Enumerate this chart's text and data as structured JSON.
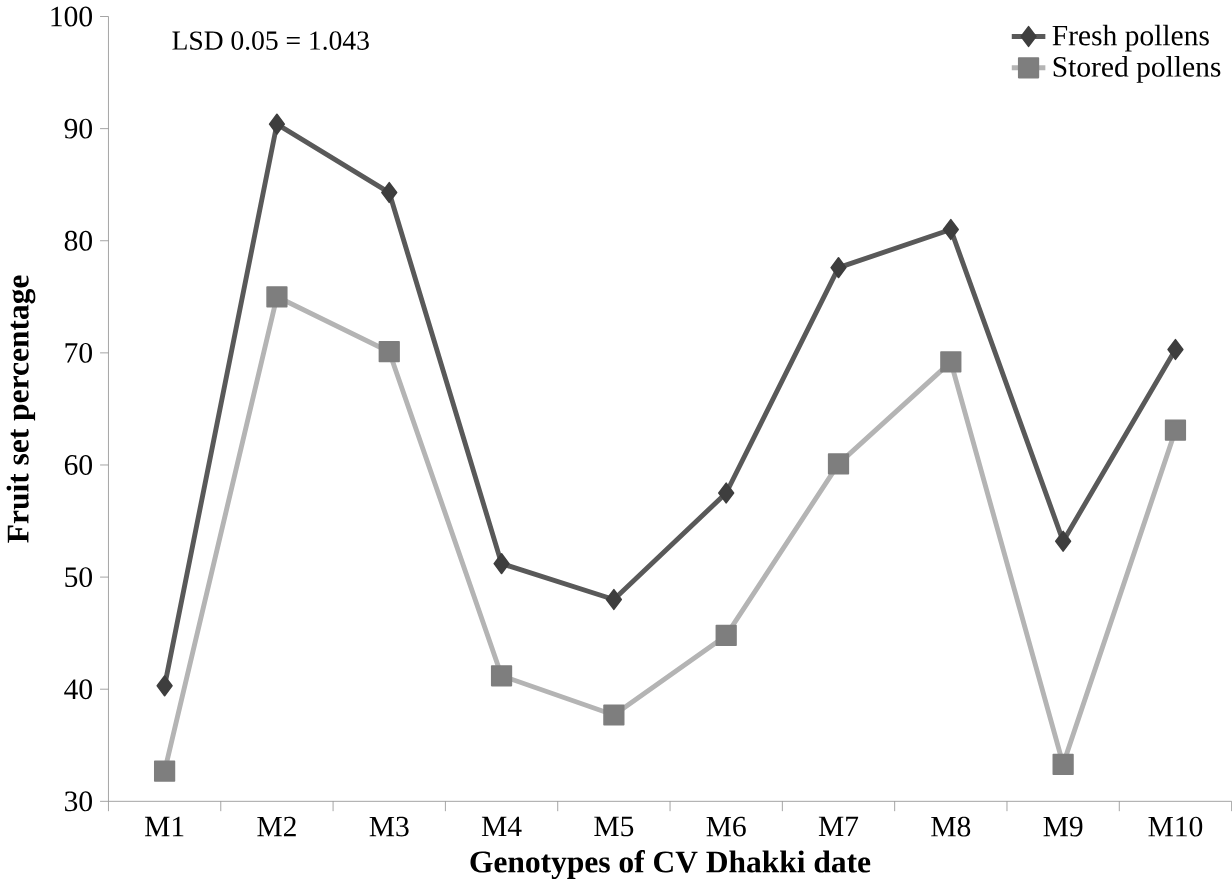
{
  "chart_data": {
    "type": "line",
    "xlabel": "Genotypes of CV Dhakki date",
    "ylabel": "Fruit set percentage",
    "categories": [
      "M1",
      "M2",
      "M3",
      "M4",
      "M5",
      "M6",
      "M7",
      "M8",
      "M9",
      "M10"
    ],
    "series": [
      {
        "name": "Fresh pollens",
        "color": "#595959",
        "marker": "diamond",
        "values": [
          40.3,
          90.4,
          84.3,
          51.2,
          48.0,
          57.5,
          77.6,
          81.0,
          53.2,
          70.3
        ]
      },
      {
        "name": "Stored pollens",
        "color": "#b4b4b4",
        "marker": "square",
        "values": [
          32.7,
          75.0,
          70.1,
          41.2,
          37.7,
          44.8,
          60.1,
          69.2,
          33.3,
          63.1
        ]
      }
    ],
    "ylim": [
      30,
      100
    ],
    "yticks": [
      30,
      40,
      50,
      60,
      70,
      80,
      90,
      100
    ],
    "annotations": [
      "LSD 0.05 = 1.043"
    ],
    "grid": false,
    "legend": "top right",
    "line_style": "solid"
  }
}
